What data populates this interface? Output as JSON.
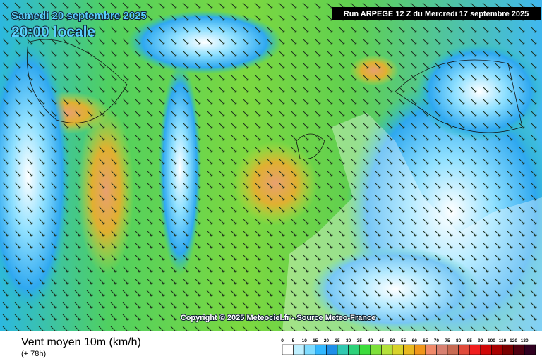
{
  "map": {
    "date": "Samedi 20 septembre 2025",
    "time": "20:00 locale",
    "run": "Run ARPEGE 12 Z du Mercredi 17 septembre 2025",
    "copyright": "Copyright © 2025 Meteociel.fr - Source Meteo-France",
    "variable": "Vent moyen 10m (km/h)",
    "lead": "(+ 78h)"
  },
  "legend": {
    "ticks": [
      0,
      5,
      10,
      15,
      20,
      25,
      30,
      35,
      40,
      45,
      50,
      55,
      60,
      65,
      70,
      75,
      80,
      85,
      90,
      100,
      110,
      120,
      130
    ],
    "colors": [
      "#ffffff",
      "#bff0ff",
      "#7fdcff",
      "#33b8ff",
      "#1f8fe8",
      "#30c8b0",
      "#2ed27a",
      "#3cdc3c",
      "#7ee03a",
      "#b4e03a",
      "#d8d22a",
      "#e8b820",
      "#f0961a",
      "#f08a6a",
      "#d88070",
      "#c86a52",
      "#e04a3a",
      "#f01e1e",
      "#d00808",
      "#a80000",
      "#7a0000",
      "#500010",
      "#300020"
    ]
  }
}
